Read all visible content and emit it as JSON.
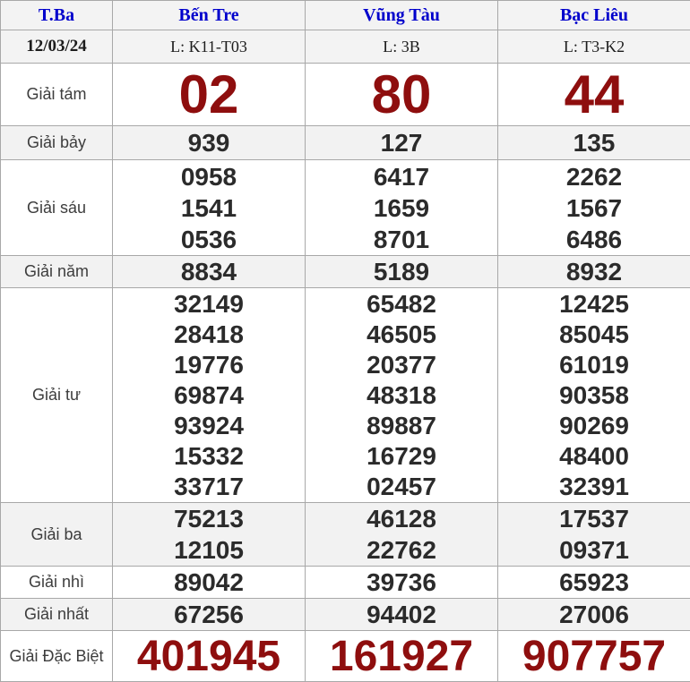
{
  "colors": {
    "header_link_blue": "#0000cc",
    "prize_red": "#8e0e0e",
    "number_dark": "#2b2b2b",
    "shade_gray": "#f2f2f2",
    "border_gray": "#a8a8a8"
  },
  "header": {
    "day": "T.Ba",
    "stations": [
      "Bến Tre",
      "Vũng Tàu",
      "Bạc Liêu"
    ]
  },
  "subheader": {
    "date": "12/03/24",
    "codes": [
      "L: K11-T03",
      "L: 3B",
      "L: T3-K2"
    ]
  },
  "rows": [
    {
      "label": "Giải tám",
      "values": [
        [
          "02"
        ],
        [
          "80"
        ],
        [
          "44"
        ]
      ]
    },
    {
      "label": "Giải bảy",
      "values": [
        [
          "939"
        ],
        [
          "127"
        ],
        [
          "135"
        ]
      ]
    },
    {
      "label": "Giải sáu",
      "values": [
        [
          "0958",
          "1541",
          "0536"
        ],
        [
          "6417",
          "1659",
          "8701"
        ],
        [
          "2262",
          "1567",
          "6486"
        ]
      ]
    },
    {
      "label": "Giải năm",
      "values": [
        [
          "8834"
        ],
        [
          "5189"
        ],
        [
          "8932"
        ]
      ]
    },
    {
      "label": "Giải tư",
      "values": [
        [
          "32149",
          "28418",
          "19776",
          "69874",
          "93924",
          "15332",
          "33717"
        ],
        [
          "65482",
          "46505",
          "20377",
          "48318",
          "89887",
          "16729",
          "02457"
        ],
        [
          "12425",
          "85045",
          "61019",
          "90358",
          "90269",
          "48400",
          "32391"
        ]
      ]
    },
    {
      "label": "Giải ba",
      "values": [
        [
          "75213",
          "12105"
        ],
        [
          "46128",
          "22762"
        ],
        [
          "17537",
          "09371"
        ]
      ]
    },
    {
      "label": "Giải nhì",
      "values": [
        [
          "89042"
        ],
        [
          "39736"
        ],
        [
          "65923"
        ]
      ]
    },
    {
      "label": "Giải nhất",
      "values": [
        [
          "67256"
        ],
        [
          "94402"
        ],
        [
          "27006"
        ]
      ]
    },
    {
      "label": "Giải Đặc Biệt",
      "values": [
        [
          "401945"
        ],
        [
          "161927"
        ],
        [
          "907757"
        ]
      ]
    }
  ]
}
